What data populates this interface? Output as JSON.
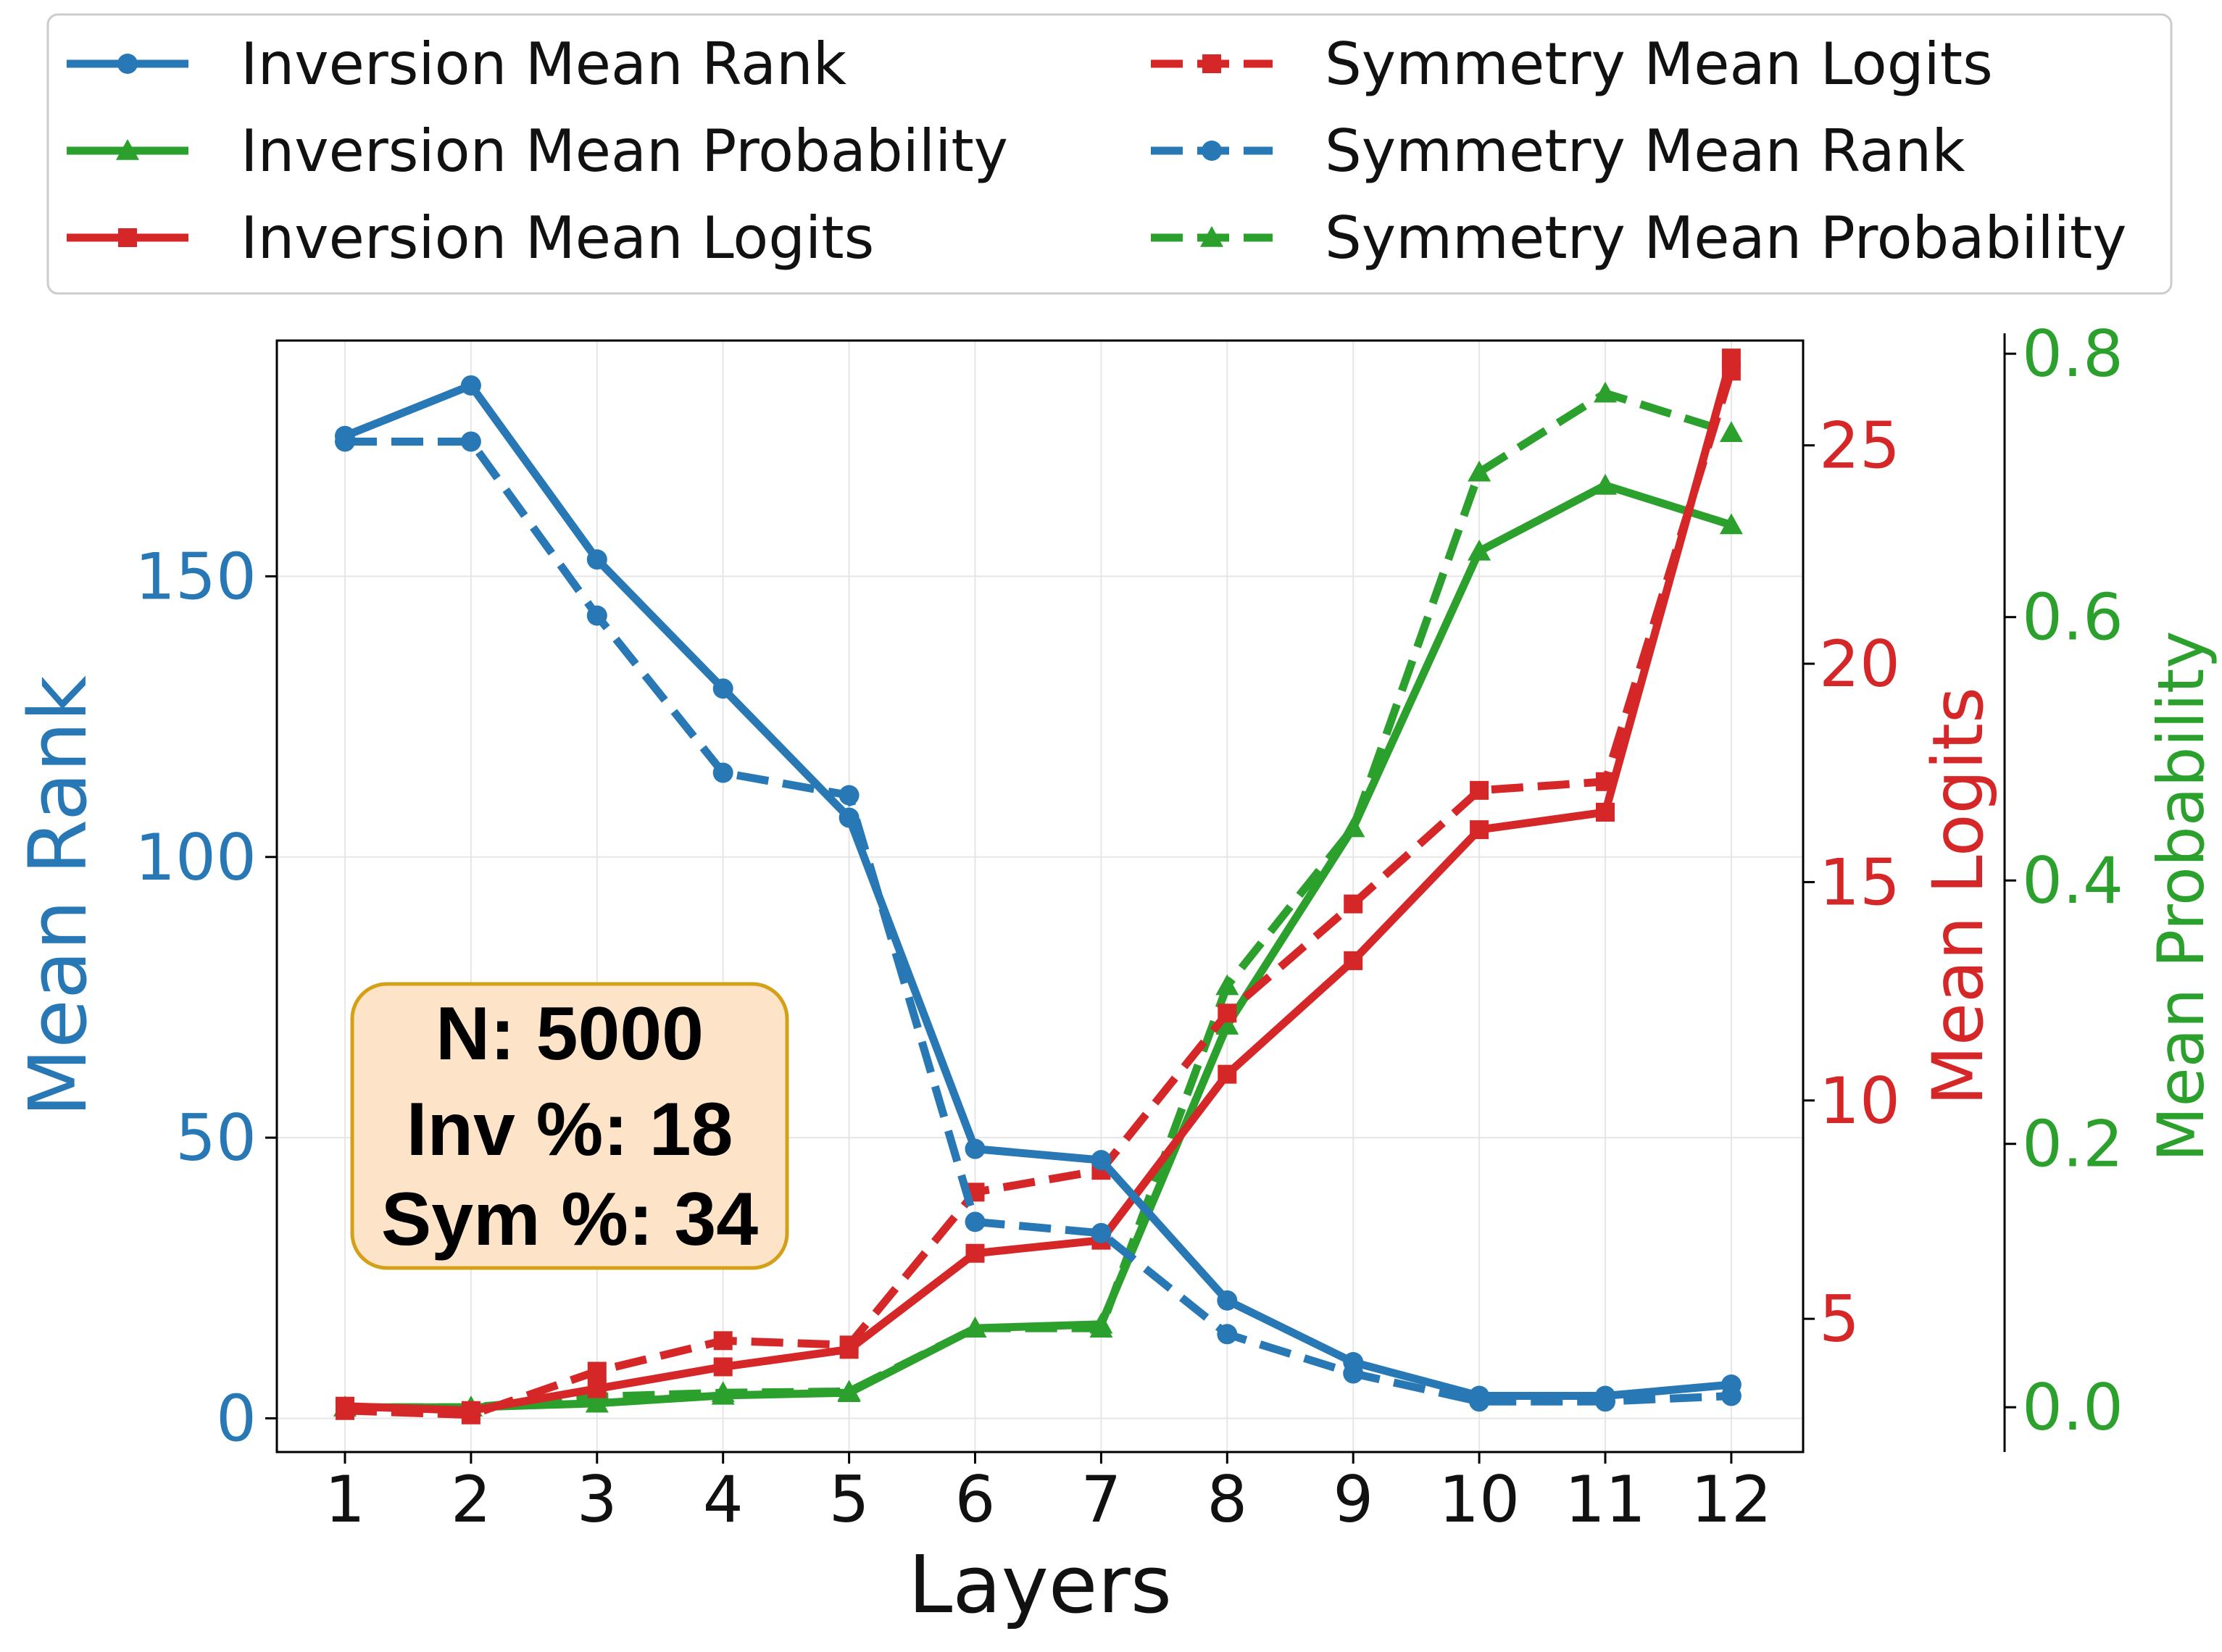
{
  "chart_data": {
    "type": "line",
    "xlabel": "Layers",
    "x": [
      1,
      2,
      3,
      4,
      5,
      6,
      7,
      8,
      9,
      10,
      11,
      12
    ],
    "axes": {
      "left": {
        "label": "Mean Rank",
        "ylim": [
          -6,
          192
        ],
        "ticks": [
          0,
          50,
          100,
          150
        ],
        "color": "#2878b5"
      },
      "right": {
        "label": "Mean Logits",
        "ylim": [
          1.95,
          27.4
        ],
        "ticks": [
          5,
          10,
          15,
          20,
          25
        ],
        "color": "#d62728"
      },
      "right2": {
        "label": "Mean Probability",
        "ylim": [
          -0.034,
          0.81
        ],
        "ticks": [
          "0.0",
          "0.2",
          "0.4",
          "0.6",
          "0.8"
        ],
        "color": "#2ca02c"
      }
    },
    "series": [
      {
        "name": "Inversion Mean Rank",
        "axis": "left",
        "style": "solid",
        "marker": "circle",
        "color": "#2878b5",
        "values": [
          175,
          184,
          153,
          130,
          107,
          48,
          46,
          21,
          10,
          4,
          4,
          6
        ]
      },
      {
        "name": "Inversion Mean Probability",
        "axis": "right2",
        "style": "solid",
        "marker": "triangle",
        "color": "#2ca02c",
        "values": [
          0.0,
          0.0,
          0.003,
          0.009,
          0.011,
          0.06,
          0.063,
          0.29,
          0.44,
          0.65,
          0.7,
          0.67
        ]
      },
      {
        "name": "Inversion Mean Logits",
        "axis": "right",
        "style": "solid",
        "marker": "square",
        "color": "#d62728",
        "values": [
          3.0,
          2.9,
          3.4,
          3.9,
          4.3,
          6.5,
          6.8,
          10.6,
          13.2,
          16.2,
          16.6,
          27.0
        ]
      },
      {
        "name": "Symmetry Mean Logits",
        "axis": "right",
        "style": "dashed",
        "marker": "square",
        "color": "#d62728",
        "values": [
          2.9,
          2.8,
          3.8,
          4.5,
          4.4,
          7.9,
          8.4,
          12.0,
          14.5,
          17.1,
          17.3,
          26.7
        ]
      },
      {
        "name": "Symmetry Mean Rank",
        "axis": "left",
        "style": "dashed",
        "marker": "circle",
        "color": "#2878b5",
        "values": [
          174,
          174,
          143,
          115,
          111,
          35,
          33,
          15,
          8,
          3,
          3,
          4
        ]
      },
      {
        "name": "Symmetry Mean Probability",
        "axis": "right2",
        "style": "dashed",
        "marker": "triangle",
        "color": "#2ca02c",
        "values": [
          0.0,
          0.0,
          0.008,
          0.011,
          0.012,
          0.06,
          0.06,
          0.32,
          0.44,
          0.71,
          0.77,
          0.74
        ]
      }
    ],
    "legend": {
      "placement": "top",
      "columns": [
        [
          "Inversion Mean Rank",
          "Inversion Mean Probability",
          "Inversion Mean Logits"
        ],
        [
          "Symmetry Mean Logits",
          "Symmetry Mean Rank",
          "Symmetry Mean Probability"
        ]
      ]
    },
    "annotation": {
      "lines": [
        "N: 5000",
        "Inv %: 18",
        "Sym %: 34"
      ]
    },
    "grid": true
  }
}
